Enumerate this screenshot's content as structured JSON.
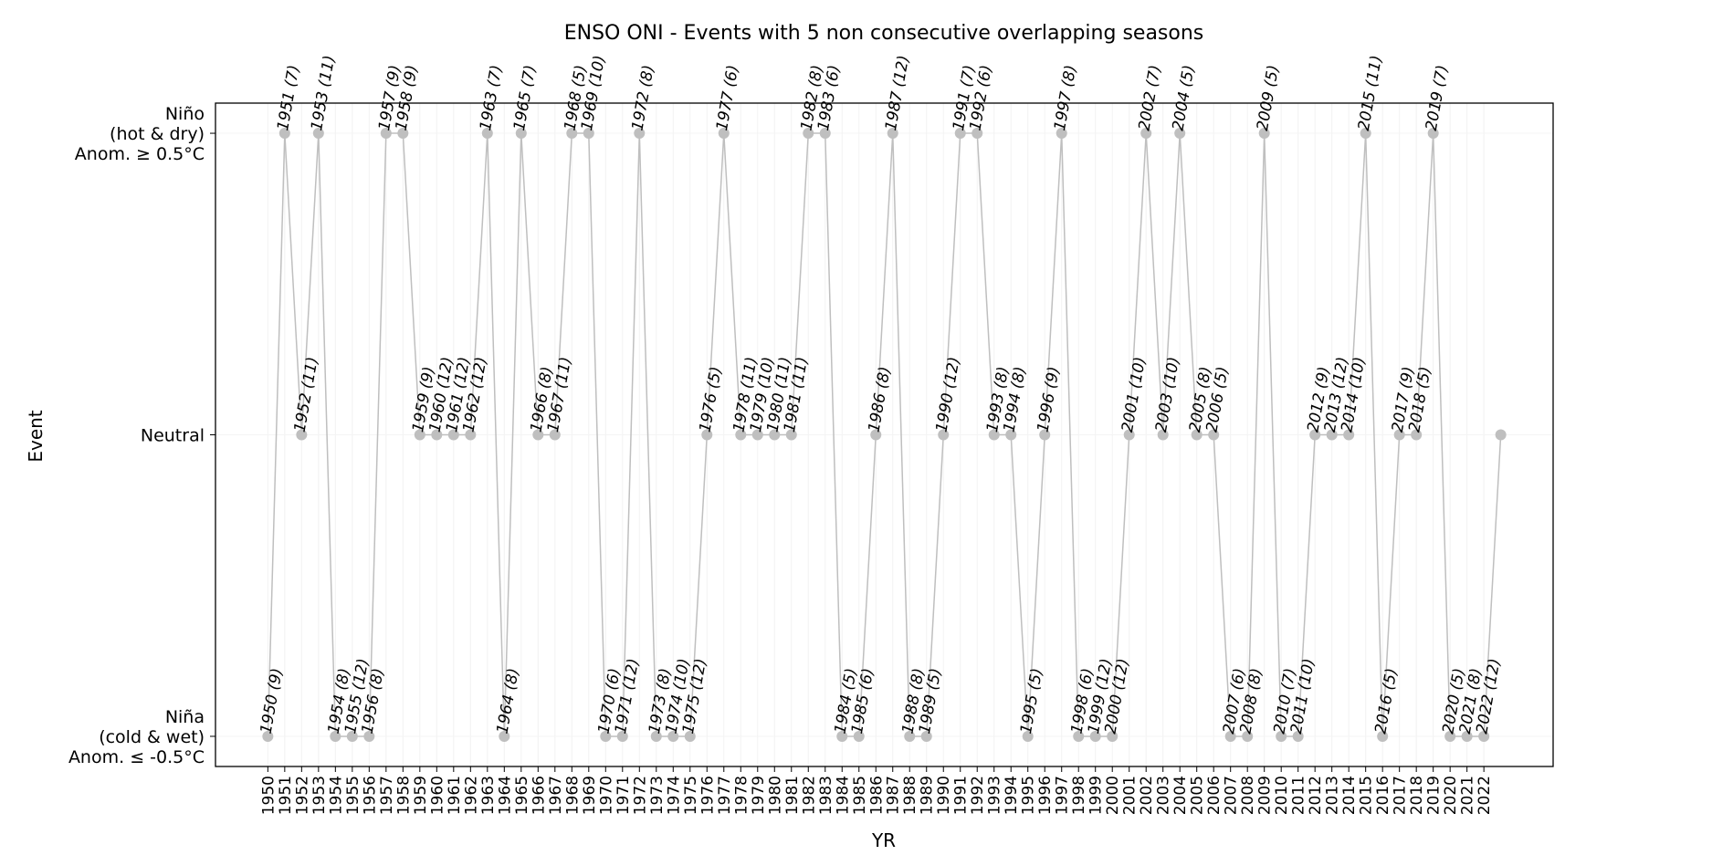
{
  "chart_data": {
    "type": "line",
    "title": "ENSO ONI - Events with 5 non consecutive overlapping seasons",
    "xlabel": "YR",
    "ylabel": "Event",
    "y_levels": [
      {
        "code": -1,
        "label_lines": [
          "Niña",
          "(cold & wet)",
          "Anom. ≤ -0.5°C"
        ]
      },
      {
        "code": 0,
        "label_lines": [
          "Neutral"
        ]
      },
      {
        "code": 1,
        "label_lines": [
          "Niño",
          "(hot & dry)",
          "Anom. ≥ 0.5°C"
        ]
      }
    ],
    "ylim": [
      -1.1,
      1.1
    ],
    "xlim": [
      1946.9,
      2026.1
    ],
    "x_ticks": [
      1950,
      1951,
      1952,
      1953,
      1954,
      1955,
      1956,
      1957,
      1958,
      1959,
      1960,
      1961,
      1962,
      1963,
      1964,
      1965,
      1966,
      1967,
      1968,
      1969,
      1970,
      1971,
      1972,
      1973,
      1974,
      1975,
      1976,
      1977,
      1978,
      1979,
      1980,
      1981,
      1982,
      1983,
      1984,
      1985,
      1986,
      1987,
      1988,
      1989,
      1990,
      1991,
      1992,
      1993,
      1994,
      1995,
      1996,
      1997,
      1998,
      1999,
      2000,
      2001,
      2002,
      2003,
      2004,
      2005,
      2006,
      2007,
      2008,
      2009,
      2010,
      2011,
      2012,
      2013,
      2014,
      2015,
      2016,
      2017,
      2018,
      2019,
      2020,
      2021,
      2022
    ],
    "grid": "vertical-faint",
    "series_color": "#bfbfbf",
    "points": [
      {
        "x": 1950,
        "y": -1,
        "label": "1950 (9)"
      },
      {
        "x": 1951,
        "y": 1,
        "label": "1951 (7)"
      },
      {
        "x": 1952,
        "y": 0,
        "label": "1952 (11)"
      },
      {
        "x": 1953,
        "y": 1,
        "label": "1953 (11)"
      },
      {
        "x": 1954,
        "y": -1,
        "label": "1954 (8)"
      },
      {
        "x": 1955,
        "y": -1,
        "label": "1955 (12)"
      },
      {
        "x": 1956,
        "y": -1,
        "label": "1956 (8)"
      },
      {
        "x": 1957,
        "y": 1,
        "label": "1957 (9)"
      },
      {
        "x": 1958,
        "y": 1,
        "label": "1958 (9)"
      },
      {
        "x": 1959,
        "y": 0,
        "label": "1959 (9)"
      },
      {
        "x": 1960,
        "y": 0,
        "label": "1960 (12)"
      },
      {
        "x": 1961,
        "y": 0,
        "label": "1961 (12)"
      },
      {
        "x": 1962,
        "y": 0,
        "label": "1962 (12)"
      },
      {
        "x": 1963,
        "y": 1,
        "label": "1963 (7)"
      },
      {
        "x": 1964,
        "y": -1,
        "label": "1964 (8)"
      },
      {
        "x": 1965,
        "y": 1,
        "label": "1965 (7)"
      },
      {
        "x": 1966,
        "y": 0,
        "label": "1966 (8)"
      },
      {
        "x": 1967,
        "y": 0,
        "label": "1967 (11)"
      },
      {
        "x": 1968,
        "y": 1,
        "label": "1968 (5)"
      },
      {
        "x": 1969,
        "y": 1,
        "label": "1969 (10)"
      },
      {
        "x": 1970,
        "y": -1,
        "label": "1970 (6)"
      },
      {
        "x": 1971,
        "y": -1,
        "label": "1971 (12)"
      },
      {
        "x": 1972,
        "y": 1,
        "label": "1972 (8)"
      },
      {
        "x": 1973,
        "y": -1,
        "label": "1973 (8)"
      },
      {
        "x": 1974,
        "y": -1,
        "label": "1974 (10)"
      },
      {
        "x": 1975,
        "y": -1,
        "label": "1975 (12)"
      },
      {
        "x": 1976,
        "y": 0,
        "label": "1976 (5)"
      },
      {
        "x": 1977,
        "y": 1,
        "label": "1977 (6)"
      },
      {
        "x": 1978,
        "y": 0,
        "label": "1978 (11)"
      },
      {
        "x": 1979,
        "y": 0,
        "label": "1979 (10)"
      },
      {
        "x": 1980,
        "y": 0,
        "label": "1980 (11)"
      },
      {
        "x": 1981,
        "y": 0,
        "label": "1981 (11)"
      },
      {
        "x": 1982,
        "y": 1,
        "label": "1982 (8)"
      },
      {
        "x": 1983,
        "y": 1,
        "label": "1983 (6)"
      },
      {
        "x": 1984,
        "y": -1,
        "label": "1984 (5)"
      },
      {
        "x": 1985,
        "y": -1,
        "label": "1985 (6)"
      },
      {
        "x": 1986,
        "y": 0,
        "label": "1986 (8)"
      },
      {
        "x": 1987,
        "y": 1,
        "label": "1987 (12)"
      },
      {
        "x": 1988,
        "y": -1,
        "label": "1988 (8)"
      },
      {
        "x": 1989,
        "y": -1,
        "label": "1989 (5)"
      },
      {
        "x": 1990,
        "y": 0,
        "label": "1990 (12)"
      },
      {
        "x": 1991,
        "y": 1,
        "label": "1991 (7)"
      },
      {
        "x": 1992,
        "y": 1,
        "label": "1992 (6)"
      },
      {
        "x": 1993,
        "y": 0,
        "label": "1993 (8)"
      },
      {
        "x": 1994,
        "y": 0,
        "label": "1994 (8)"
      },
      {
        "x": 1995,
        "y": -1,
        "label": "1995 (5)"
      },
      {
        "x": 1996,
        "y": 0,
        "label": "1996 (9)"
      },
      {
        "x": 1997,
        "y": 1,
        "label": "1997 (8)"
      },
      {
        "x": 1998,
        "y": -1,
        "label": "1998 (6)"
      },
      {
        "x": 1999,
        "y": -1,
        "label": "1999 (12)"
      },
      {
        "x": 2000,
        "y": -1,
        "label": "2000 (12)"
      },
      {
        "x": 2001,
        "y": 0,
        "label": "2001 (10)"
      },
      {
        "x": 2002,
        "y": 1,
        "label": "2002 (7)"
      },
      {
        "x": 2003,
        "y": 0,
        "label": "2003 (10)"
      },
      {
        "x": 2004,
        "y": 1,
        "label": "2004 (5)"
      },
      {
        "x": 2005,
        "y": 0,
        "label": "2005 (8)"
      },
      {
        "x": 2006,
        "y": 0,
        "label": "2006 (5)"
      },
      {
        "x": 2007,
        "y": -1,
        "label": "2007 (6)"
      },
      {
        "x": 2008,
        "y": -1,
        "label": "2008 (8)"
      },
      {
        "x": 2009,
        "y": 1,
        "label": "2009 (5)"
      },
      {
        "x": 2010,
        "y": -1,
        "label": "2010 (7)"
      },
      {
        "x": 2011,
        "y": -1,
        "label": "2011 (10)"
      },
      {
        "x": 2012,
        "y": 0,
        "label": "2012 (9)"
      },
      {
        "x": 2013,
        "y": 0,
        "label": "2013 (12)"
      },
      {
        "x": 2014,
        "y": 0,
        "label": "2014 (10)"
      },
      {
        "x": 2015,
        "y": 1,
        "label": "2015 (11)"
      },
      {
        "x": 2016,
        "y": -1,
        "label": "2016 (5)"
      },
      {
        "x": 2017,
        "y": 0,
        "label": "2017 (9)"
      },
      {
        "x": 2018,
        "y": 0,
        "label": "2018 (5)"
      },
      {
        "x": 2019,
        "y": 1,
        "label": "2019 (7)"
      },
      {
        "x": 2020,
        "y": -1,
        "label": "2020 (5)"
      },
      {
        "x": 2021,
        "y": -1,
        "label": "2021 (8)"
      },
      {
        "x": 2022,
        "y": -1,
        "label": "2022 (12)"
      },
      {
        "x": 2023,
        "y": 0,
        "label": ""
      }
    ]
  }
}
